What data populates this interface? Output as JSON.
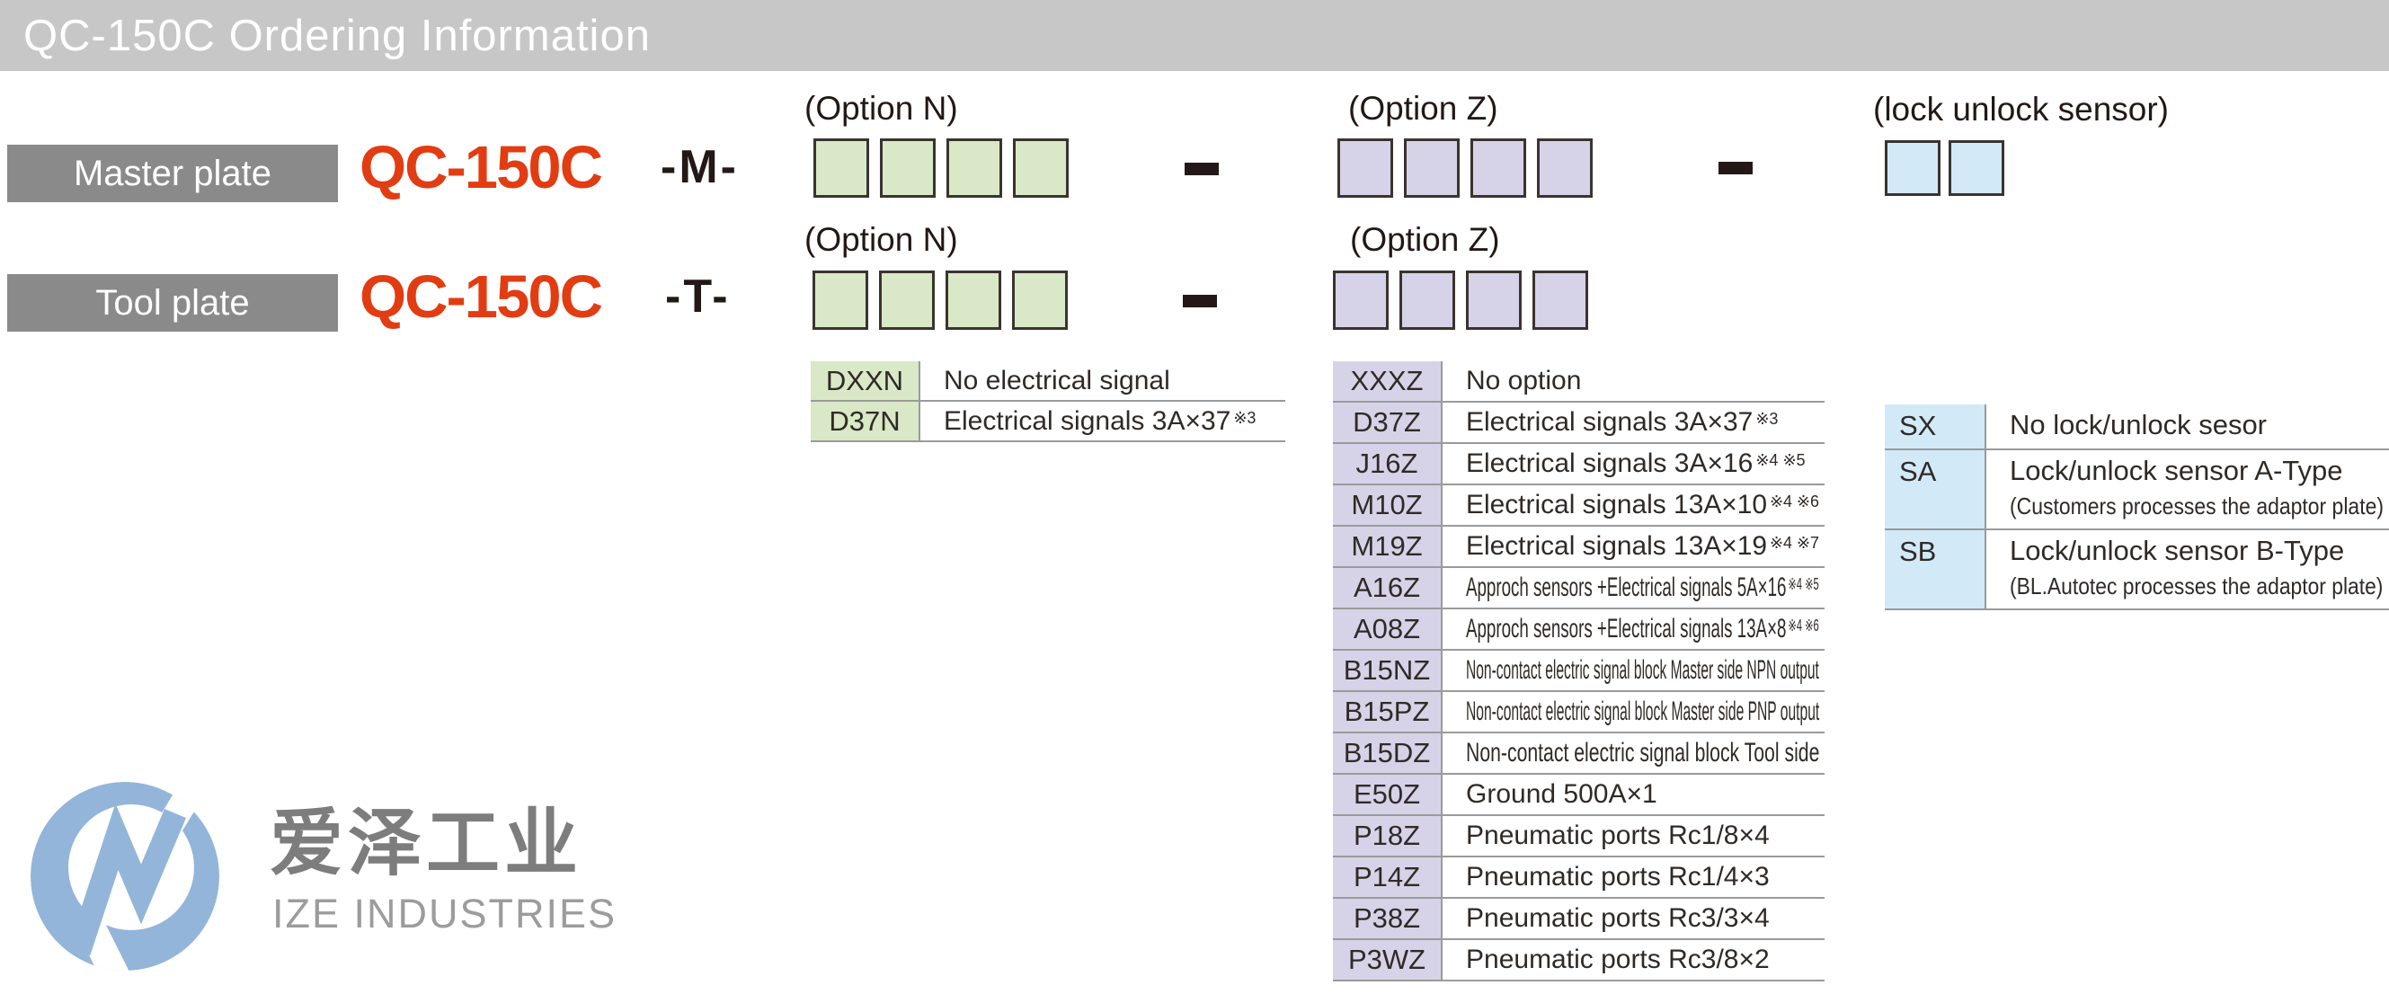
{
  "title_bar": {
    "title": "QC-150C Ordering Information"
  },
  "labels": {
    "option_n": "(Option N)",
    "option_z": "(Option Z)",
    "lock_sensor": "(lock unlock sensor)"
  },
  "master_row": {
    "plate": "Master plate",
    "model": "QC-150C",
    "suffix": "-M-",
    "option_n_box_count": 4,
    "option_z_box_count": 4,
    "lock_box_count": 2
  },
  "tool_row": {
    "plate": "Tool plate",
    "model": "QC-150C",
    "suffix": "-T-",
    "option_n_box_count": 4,
    "option_z_box_count": 4
  },
  "option_n_table": {
    "rows": [
      {
        "code": "DXXN",
        "desc": "No electrical signal",
        "note": ""
      },
      {
        "code": "D37N",
        "desc": "Electrical signals 3A×37",
        "note": "※3"
      }
    ]
  },
  "option_z_table": {
    "rows": [
      {
        "code": "XXXZ",
        "desc": "No option",
        "note": ""
      },
      {
        "code": "D37Z",
        "desc": "Electrical signals 3A×37",
        "note": "※3"
      },
      {
        "code": "J16Z",
        "desc": "Electrical signals 3A×16",
        "note": "※4 ※5"
      },
      {
        "code": "M10Z",
        "desc": "Electrical signals 13A×10",
        "note": "※4 ※6"
      },
      {
        "code": "M19Z",
        "desc": "Electrical signals 13A×19",
        "note": "※4 ※7"
      },
      {
        "code": "A16Z",
        "desc": "Approch sensors +Electrical signals 5A×16",
        "note": "※4 ※5"
      },
      {
        "code": "A08Z",
        "desc": "Approch sensors +Electrical signals 13A×8",
        "note": "※4 ※6"
      },
      {
        "code": "B15NZ",
        "desc": "Non-contact electric signal block Master side  NPN output",
        "note": ""
      },
      {
        "code": "B15PZ",
        "desc": "Non-contact electric signal block Master side  PNP output",
        "note": ""
      },
      {
        "code": "B15DZ",
        "desc": "Non-contact electric signal block Tool side",
        "note": ""
      },
      {
        "code": "E50Z",
        "desc": "Ground 500A×1",
        "note": ""
      },
      {
        "code": "P18Z",
        "desc": "Pneumatic ports Rc1/8×4",
        "note": ""
      },
      {
        "code": "P14Z",
        "desc": "Pneumatic ports Rc1/4×3",
        "note": ""
      },
      {
        "code": "P38Z",
        "desc": "Pneumatic ports Rc3/3×4",
        "note": ""
      },
      {
        "code": "P3WZ",
        "desc": "Pneumatic ports Rc3/8×2",
        "note": ""
      }
    ]
  },
  "lock_table": {
    "rows": [
      {
        "code": "SX",
        "desc": "No lock/unlock sesor",
        "sub": ""
      },
      {
        "code": "SA",
        "desc": "Lock/unlock sensor A-Type",
        "sub": "(Customers processes the adaptor plate)"
      },
      {
        "code": "SB",
        "desc": "Lock/unlock sensor B-Type",
        "sub": "(BL.Autotec processes the adaptor plate)"
      }
    ]
  },
  "logo": {
    "name_cn": "爱泽工业",
    "name_en": "IZE INDUSTRIES"
  },
  "colors": {
    "accent_orange": "#e23c12",
    "title_bar_gray": "#c7c7c7",
    "badge_gray": "#8a8a8a",
    "green_box": "#d9e8c6",
    "purple_box": "#d6d3e8",
    "blue_box": "#d2e9f7",
    "logo_blue": "#93b5d9"
  }
}
